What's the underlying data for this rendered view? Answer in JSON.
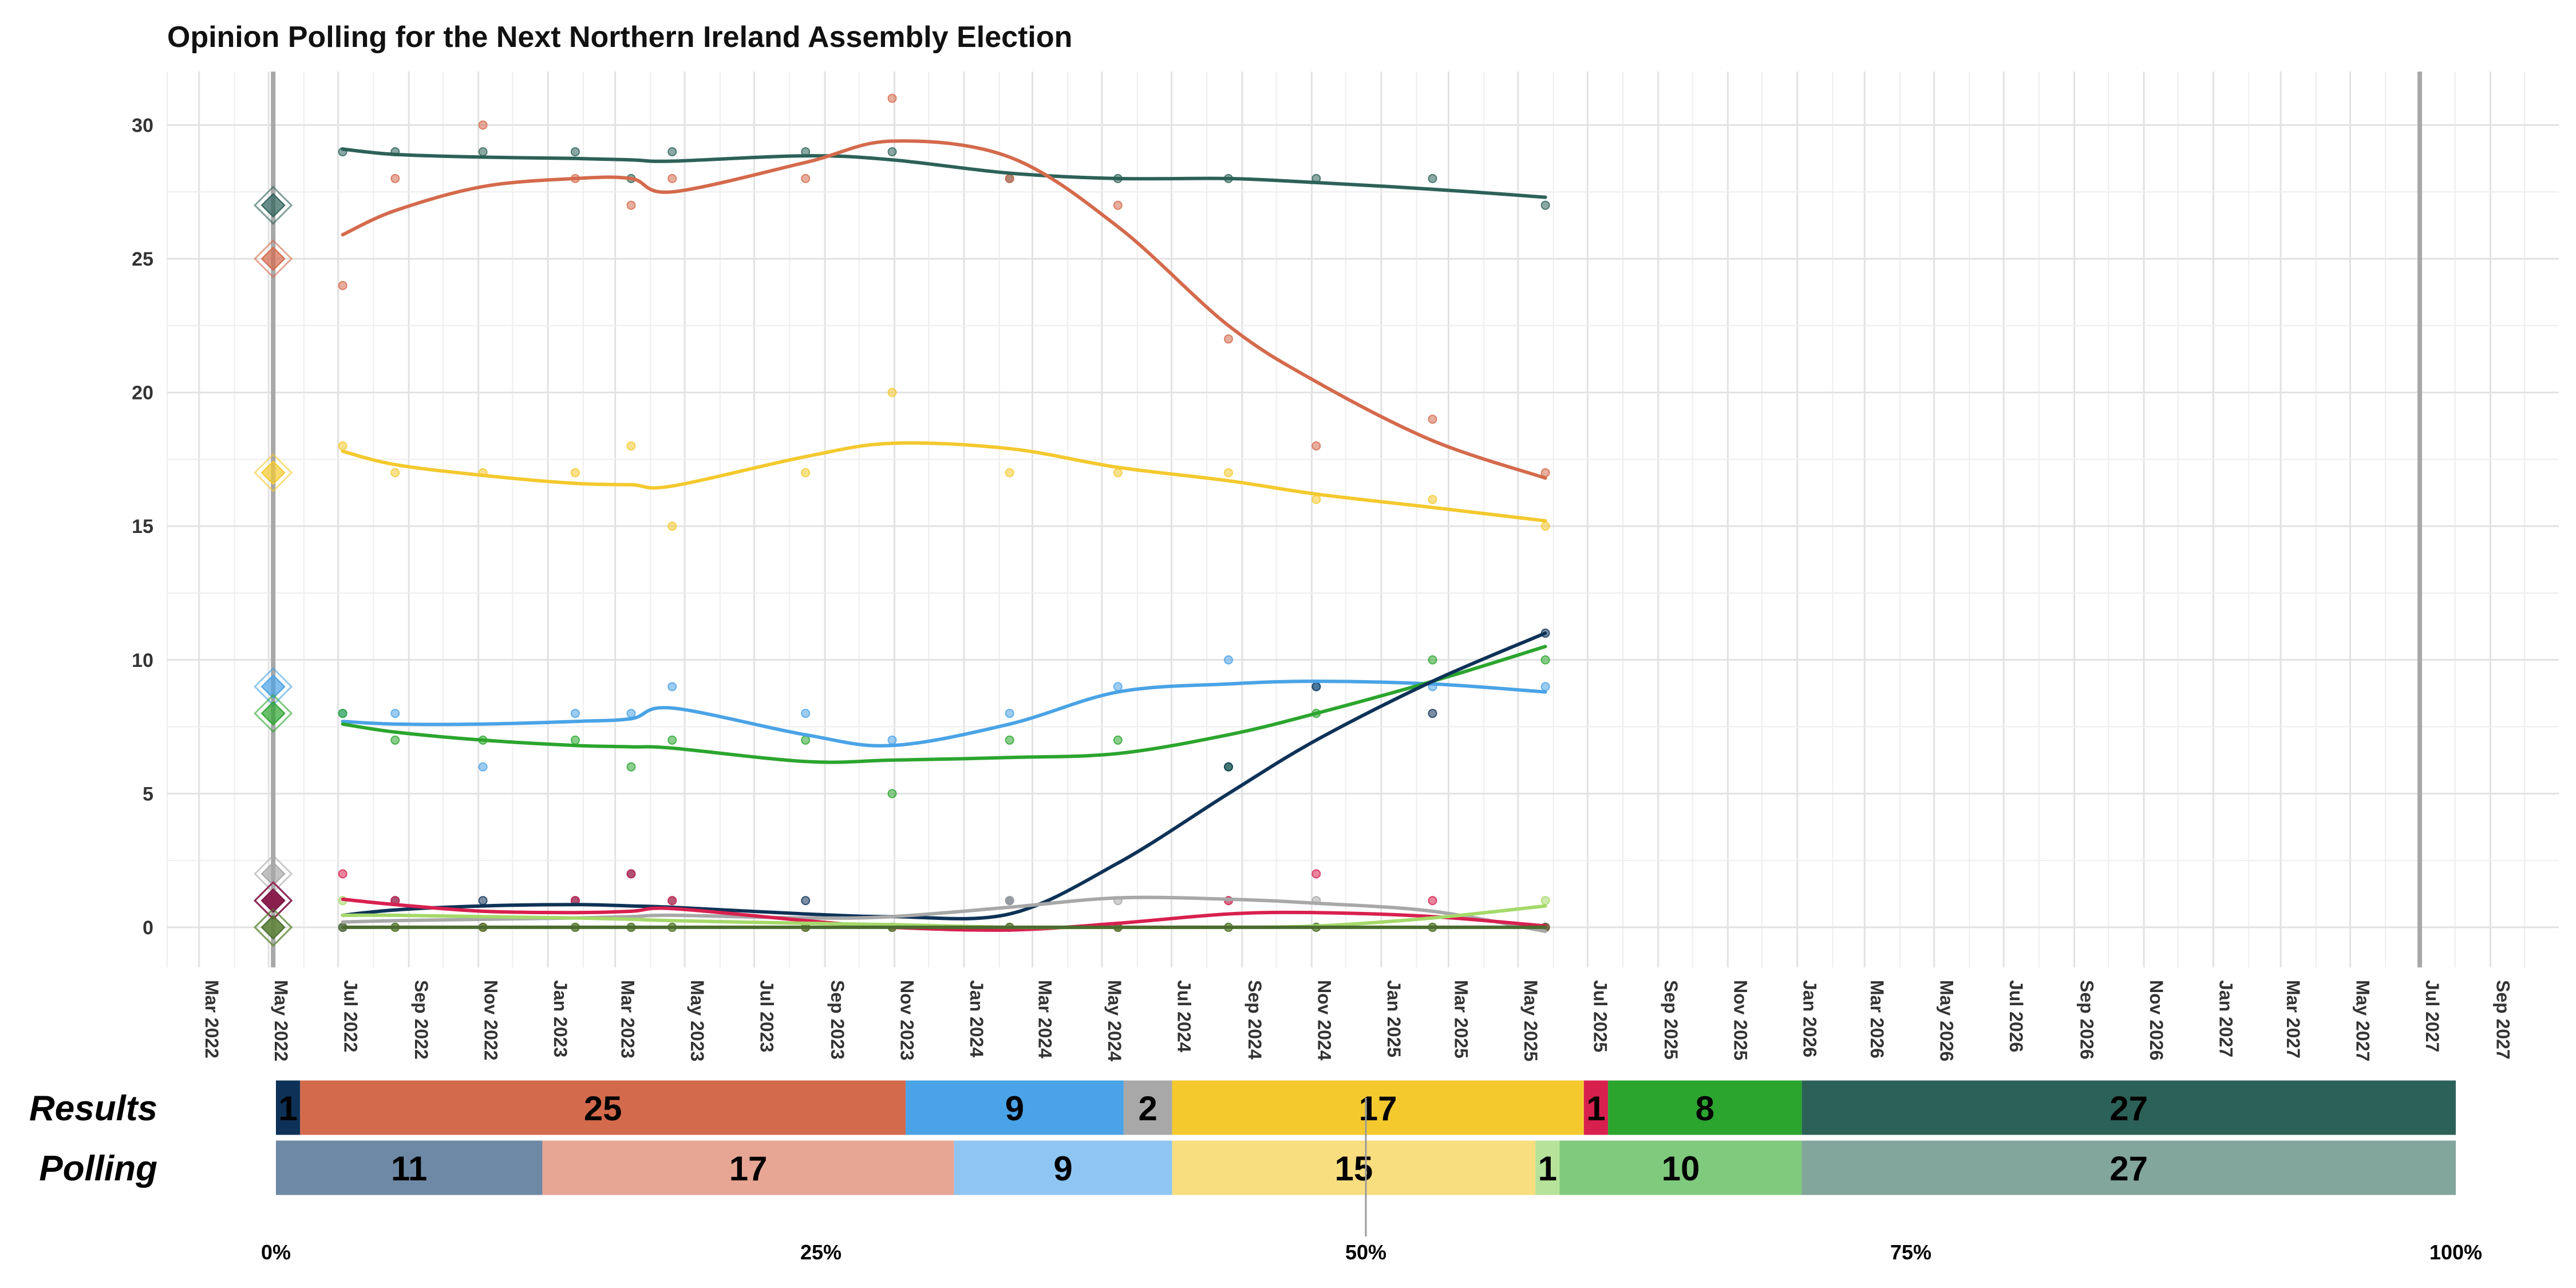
{
  "chart_data": {
    "type": "line",
    "title": "Opinion Polling for the Next Northern Ireland Assembly Election",
    "ylim": [
      -1.5,
      32
    ],
    "y_ticks": [
      "0",
      "5",
      "10",
      "15",
      "20",
      "25",
      "30"
    ],
    "x_tick_labels": [
      "Mar 2022",
      "May 2022",
      "Jul 2022",
      "Sep 2022",
      "Nov 2022",
      "Jan 2023",
      "Mar 2023",
      "May 2023",
      "Jul 2023",
      "Sep 2023",
      "Nov 2023",
      "Jan 2024",
      "Mar 2024",
      "May 2024",
      "Jul 2024",
      "Sep 2024",
      "Nov 2024",
      "Jan 2025",
      "Mar 2025",
      "May 2025",
      "Jul 2025",
      "Sep 2025",
      "Nov 2025",
      "Jan 2026",
      "Mar 2026",
      "May 2026",
      "Jul 2026",
      "Sep 2026",
      "Nov 2026",
      "Jan 2027",
      "Mar 2027",
      "May 2027",
      "Jul 2027",
      "Sep 2027"
    ],
    "x_range": [
      "2022-02-01",
      "2027-10-31"
    ],
    "election_markers": [
      "2022-05-05",
      "2027-07-01"
    ],
    "grid": true,
    "poll_dates": [
      "2022-07-05",
      "2022-08-20",
      "2022-11-05",
      "2023-01-25",
      "2023-03-15",
      "2023-04-20",
      "2023-08-15",
      "2023-10-30",
      "2024-02-10",
      "2024-05-15",
      "2024-08-20",
      "2024-11-05",
      "2025-02-15",
      "2025-05-25"
    ],
    "series": [
      {
        "color": "#2C6158",
        "result": 27,
        "polls": [
          29,
          29,
          29,
          29,
          28,
          29,
          29,
          29,
          28,
          28,
          28,
          28,
          28,
          27
        ],
        "trend": [
          [
            0,
            29.1
          ],
          [
            1,
            28.9
          ],
          [
            2,
            28.8
          ],
          [
            3,
            28.75
          ],
          [
            4,
            28.7
          ],
          [
            5,
            28.65
          ],
          [
            6,
            28.85
          ],
          [
            7,
            28.7
          ],
          [
            8,
            28.2
          ],
          [
            9,
            28.0
          ],
          [
            10,
            28.0
          ],
          [
            11,
            27.85
          ],
          [
            12,
            27.6
          ],
          [
            13,
            27.3
          ]
        ]
      },
      {
        "color": "#D46A4C",
        "result": 25,
        "polls": [
          24,
          28,
          30,
          28,
          27,
          28,
          28,
          31,
          28,
          27,
          22,
          18,
          19,
          17
        ],
        "trend": [
          [
            0,
            25.9
          ],
          [
            1,
            26.8
          ],
          [
            2,
            27.7
          ],
          [
            3,
            28.0
          ],
          [
            4,
            28.0
          ],
          [
            5,
            27.5
          ],
          [
            6,
            28.6
          ],
          [
            7,
            29.4
          ],
          [
            8,
            28.8
          ],
          [
            9,
            26.2
          ],
          [
            10,
            22.5
          ],
          [
            11,
            20.4
          ],
          [
            12,
            18.2
          ],
          [
            13,
            16.8
          ]
        ]
      },
      {
        "color": "#F4C92E",
        "result": 17,
        "polls": [
          18,
          17,
          17,
          17,
          18,
          15,
          17,
          20,
          17,
          17,
          17,
          16,
          16,
          15
        ],
        "trend": [
          [
            0,
            17.8
          ],
          [
            1,
            17.3
          ],
          [
            2,
            16.9
          ],
          [
            3,
            16.6
          ],
          [
            4,
            16.55
          ],
          [
            5,
            16.5
          ],
          [
            6,
            17.6
          ],
          [
            7,
            18.1
          ],
          [
            8,
            17.9
          ],
          [
            9,
            17.2
          ],
          [
            10,
            16.7
          ],
          [
            11,
            16.2
          ],
          [
            12,
            15.7
          ],
          [
            13,
            15.2
          ]
        ]
      },
      {
        "color": "#4AA3E6",
        "result": 9,
        "polls": [
          8,
          8,
          6,
          8,
          8,
          9,
          8,
          7,
          8,
          9,
          10,
          9,
          9,
          9
        ],
        "trend": [
          [
            0,
            7.7
          ],
          [
            1,
            7.6
          ],
          [
            2,
            7.6
          ],
          [
            3,
            7.7
          ],
          [
            4,
            7.8
          ],
          [
            5,
            8.2
          ],
          [
            6,
            7.2
          ],
          [
            7,
            6.8
          ],
          [
            8,
            7.6
          ],
          [
            9,
            8.8
          ],
          [
            10,
            9.1
          ],
          [
            11,
            9.2
          ],
          [
            12,
            9.1
          ],
          [
            13,
            8.8
          ]
        ]
      },
      {
        "color": "#2BA52E",
        "result": 8,
        "polls": [
          8,
          7,
          7,
          7,
          6,
          7,
          7,
          5,
          7,
          7,
          6,
          8,
          10,
          10
        ],
        "trend": [
          [
            0,
            7.6
          ],
          [
            1,
            7.3
          ],
          [
            2,
            7.0
          ],
          [
            3,
            6.8
          ],
          [
            4,
            6.75
          ],
          [
            5,
            6.7
          ],
          [
            6,
            6.2
          ],
          [
            7,
            6.25
          ],
          [
            8,
            6.35
          ],
          [
            9,
            6.5
          ],
          [
            10,
            7.2
          ],
          [
            11,
            8.0
          ],
          [
            12,
            9.2
          ],
          [
            13,
            10.5
          ]
        ]
      },
      {
        "color": "#0E3257",
        "result": 1,
        "polls": [
          0,
          1,
          1,
          1,
          2,
          1,
          1,
          0,
          1,
          0,
          6,
          9,
          8,
          11
        ],
        "trend": [
          [
            0,
            0.45
          ],
          [
            1,
            0.65
          ],
          [
            2,
            0.8
          ],
          [
            3,
            0.85
          ],
          [
            4,
            0.8
          ],
          [
            5,
            0.75
          ],
          [
            6,
            0.5
          ],
          [
            7,
            0.4
          ],
          [
            8,
            0.5
          ],
          [
            9,
            2.4
          ],
          [
            10,
            5.0
          ],
          [
            11,
            7.0
          ],
          [
            12,
            9.2
          ],
          [
            13,
            11.0
          ]
        ]
      },
      {
        "color": "#A8A8A8",
        "result": 2,
        "polls": [
          0,
          0,
          0,
          0,
          0,
          1,
          0,
          0,
          1,
          1,
          1,
          1,
          0,
          0
        ],
        "trend": [
          [
            0,
            0.2
          ],
          [
            1,
            0.25
          ],
          [
            2,
            0.3
          ],
          [
            3,
            0.35
          ],
          [
            4,
            0.4
          ],
          [
            5,
            0.45
          ],
          [
            6,
            0.35
          ],
          [
            7,
            0.4
          ],
          [
            8,
            0.75
          ],
          [
            9,
            1.1
          ],
          [
            10,
            1.05
          ],
          [
            11,
            0.9
          ],
          [
            12,
            0.6
          ],
          [
            13,
            -0.15
          ]
        ]
      },
      {
        "color": "#D8204F",
        "result": 1,
        "polls": [
          2,
          1,
          0,
          1,
          2,
          1,
          0,
          0,
          0,
          0,
          1,
          2,
          1,
          0
        ],
        "trend": [
          [
            0,
            1.05
          ],
          [
            1,
            0.85
          ],
          [
            2,
            0.6
          ],
          [
            3,
            0.55
          ],
          [
            4,
            0.6
          ],
          [
            5,
            0.7
          ],
          [
            6,
            0.25
          ],
          [
            7,
            0.0
          ],
          [
            8,
            -0.1
          ],
          [
            9,
            0.15
          ],
          [
            10,
            0.5
          ],
          [
            11,
            0.55
          ],
          [
            12,
            0.4
          ],
          [
            13,
            0.05
          ]
        ]
      },
      {
        "color": "#A5D96A",
        "result": 0,
        "polls": [
          1,
          0,
          0,
          0,
          0,
          0,
          0,
          0,
          0,
          0,
          0,
          0,
          0,
          1
        ],
        "trend": [
          [
            0,
            0.45
          ],
          [
            1,
            0.45
          ],
          [
            2,
            0.4
          ],
          [
            3,
            0.35
          ],
          [
            4,
            0.3
          ],
          [
            5,
            0.25
          ],
          [
            6,
            0.15
          ],
          [
            7,
            0.1
          ],
          [
            8,
            0.0
          ],
          [
            9,
            0.0
          ],
          [
            10,
            0.0
          ],
          [
            11,
            0.05
          ],
          [
            12,
            0.35
          ],
          [
            13,
            0.8
          ]
        ]
      },
      {
        "color": "#7A1848",
        "result": 1,
        "polls": [],
        "trend": []
      },
      {
        "color": "#4B6B2F",
        "result": 0,
        "polls": [
          0,
          0,
          0,
          0,
          0,
          0,
          0,
          0,
          0,
          0,
          0,
          0,
          0,
          0
        ],
        "trend": [
          [
            0,
            0.0
          ],
          [
            4,
            0.0
          ],
          [
            8,
            0.0
          ],
          [
            13,
            0.0
          ]
        ]
      }
    ],
    "bars": {
      "rows": [
        {
          "label": "Results",
          "segments": [
            {
              "label": "1",
              "value": 1,
              "color": "#0E3257"
            },
            {
              "label": "25",
              "value": 25,
              "color": "#D46A4C"
            },
            {
              "label": "9",
              "value": 9,
              "color": "#4AA3E6"
            },
            {
              "label": "2",
              "value": 2,
              "color": "#A8A8A8"
            },
            {
              "label": "17",
              "value": 17,
              "color": "#F4C92E"
            },
            {
              "label": "1",
              "value": 1,
              "color": "#D8204F"
            },
            {
              "label": "8",
              "value": 8,
              "color": "#2BA52E"
            },
            {
              "label": "27",
              "value": 27,
              "color": "#2C6158"
            }
          ]
        },
        {
          "label": "Polling",
          "segments": [
            {
              "label": "11",
              "value": 11,
              "color": "#6E89A5"
            },
            {
              "label": "17",
              "value": 17,
              "color": "#E7A694"
            },
            {
              "label": "9",
              "value": 9,
              "color": "#8FC5F2"
            },
            {
              "label": "15",
              "value": 15,
              "color": "#F8DE7F"
            },
            {
              "label": "1",
              "value": 1,
              "color": "#B7E29A"
            },
            {
              "label": "10",
              "value": 10,
              "color": "#80CA7D"
            },
            {
              "label": "27",
              "value": 27,
              "color": "#82A59C"
            }
          ]
        }
      ],
      "pct_ticks": [
        "0%",
        "25%",
        "50%",
        "75%",
        "100%"
      ]
    }
  }
}
